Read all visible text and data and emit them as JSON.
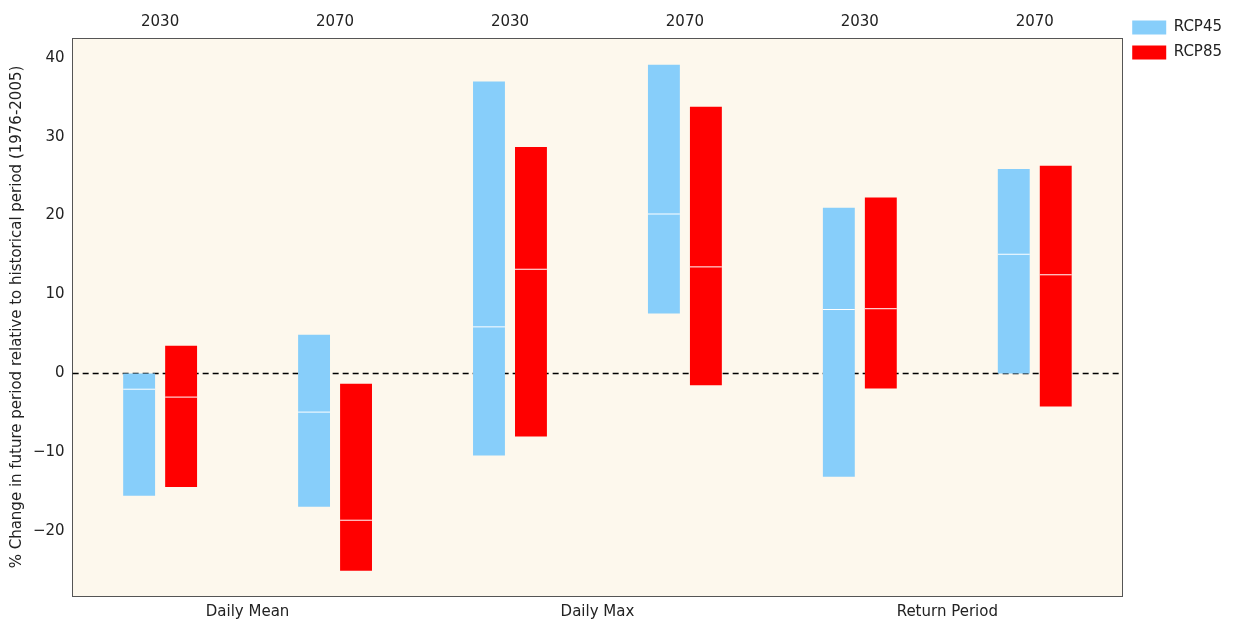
{
  "chart_data": {
    "type": "box",
    "ylabel": "% Change in future period relative to historical period (1976-2005)",
    "categories": [
      "2030",
      "2070",
      "2030",
      "2070",
      "2030",
      "2070"
    ],
    "annotations": [
      "Daily Mean",
      "Daily Max",
      "Return Period"
    ],
    "series": [
      {
        "name": "RCP45",
        "color": "#87cefa",
        "boxes": [
          {
            "low": -15.5,
            "q1": -15.5,
            "median": -2,
            "q3": 0,
            "high": 0
          },
          {
            "low": -16.9,
            "q1": -16.9,
            "median": -4.9,
            "q3": 4.9,
            "high": 4.9
          },
          {
            "low": -10.4,
            "q1": -10.4,
            "median": 5.9,
            "q3": 37,
            "high": 37
          },
          {
            "low": 7.6,
            "q1": 7.6,
            "median": 20.2,
            "q3": 39.1,
            "high": 39.1
          },
          {
            "low": -13.1,
            "q1": -13.1,
            "median": 8.1,
            "q3": 21,
            "high": 21
          },
          {
            "low": 0,
            "q1": 0,
            "median": 15.1,
            "q3": 25.9,
            "high": 25.9
          }
        ]
      },
      {
        "name": "RCP85",
        "color": "#ff0000",
        "boxes": [
          {
            "low": -14.4,
            "q1": -14.4,
            "median": -3,
            "q3": 3.5,
            "high": 3.5
          },
          {
            "low": -25,
            "q1": -25,
            "median": -18.6,
            "q3": -1.3,
            "high": -1.3
          },
          {
            "low": -8,
            "q1": -8,
            "median": 13.2,
            "q3": 28.7,
            "high": 28.7
          },
          {
            "low": -1.5,
            "q1": -1.5,
            "median": 13.5,
            "q3": 33.8,
            "high": 33.8
          },
          {
            "low": -1.9,
            "q1": -1.9,
            "median": 8.2,
            "q3": 22.3,
            "high": 22.3
          },
          {
            "low": -4.2,
            "q1": -4.2,
            "median": 12.5,
            "q3": 26.3,
            "high": 26.3
          }
        ]
      }
    ],
    "ylim": [
      -28.2,
      42.5
    ],
    "yticks": [
      -20,
      -10,
      0,
      10,
      20,
      30,
      40
    ],
    "ref_lines": [
      {
        "axis": "y",
        "value": 0,
        "color": "#000000",
        "line_style": "dashed"
      }
    ],
    "grid": false,
    "legend": "top right"
  }
}
